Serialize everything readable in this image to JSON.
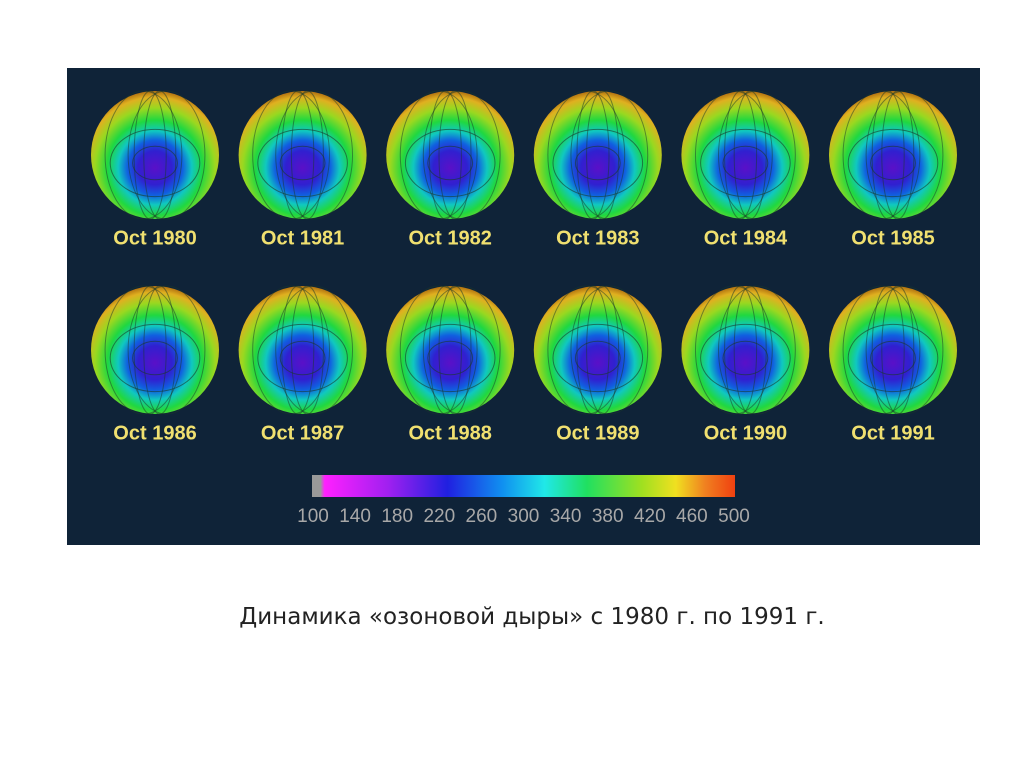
{
  "panels": [
    {
      "label": "Oct 1980"
    },
    {
      "label": "Oct 1981"
    },
    {
      "label": "Oct 1982"
    },
    {
      "label": "Oct 1983"
    },
    {
      "label": "Oct 1984"
    },
    {
      "label": "Oct 1985"
    },
    {
      "label": "Oct 1986"
    },
    {
      "label": "Oct 1987"
    },
    {
      "label": "Oct 1988"
    },
    {
      "label": "Oct 1989"
    },
    {
      "label": "Oct 1990"
    },
    {
      "label": "Oct 1991"
    }
  ],
  "colorbar": {
    "ticks": [
      100,
      140,
      180,
      220,
      260,
      300,
      340,
      380,
      420,
      460,
      500
    ]
  },
  "caption": "Динамика «озоновой дыры» с 1980 г. по 1991 г."
}
